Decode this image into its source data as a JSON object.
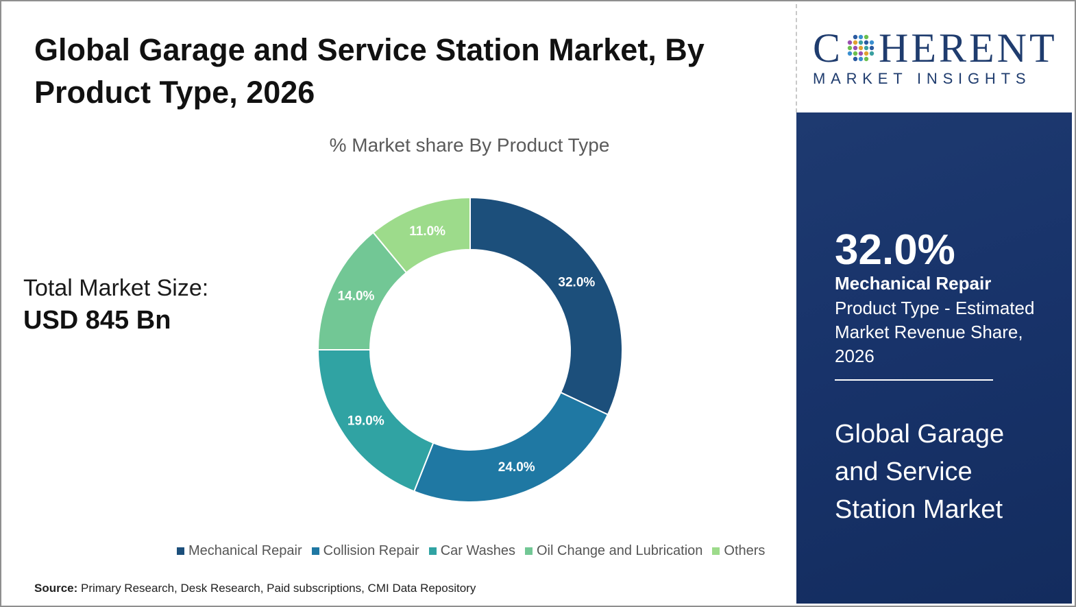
{
  "title": "Global Garage and Service Station Market, By Product Type, 2026",
  "market_size": {
    "label": "Total Market Size:",
    "value": "USD 845 Bn"
  },
  "source": {
    "label": "Source:",
    "text": " Primary Research, Desk Research, Paid subscriptions, CMI Data Repository"
  },
  "logo": {
    "main_left": "C",
    "main_right": "HERENT",
    "sub": "MARKET INSIGHTS"
  },
  "highlight": {
    "value": "32.0%",
    "category": "Mechanical Repair",
    "description": "Product Type - Estimated Market Revenue Share, 2026",
    "market_name": "Global Garage and Service Station Market"
  },
  "colors": {
    "mechanical_repair": "#1c4f7b",
    "collision_repair": "#1f78a3",
    "car_washes": "#30a3a3",
    "oil_change": "#72c795",
    "others": "#9ddb8b",
    "panel": "#1b376c"
  },
  "chart_data": {
    "type": "pie",
    "donut": true,
    "title": "% Market share By Product Type",
    "categories": [
      "Mechanical Repair",
      "Collision Repair",
      "Car Washes",
      "Oil Change and Lubrication",
      "Others"
    ],
    "values": [
      32.0,
      24.0,
      19.0,
      14.0,
      11.0
    ],
    "labels": [
      "32.0%",
      "24.0%",
      "19.0%",
      "14.0%",
      "11.0%"
    ],
    "legend_position": "bottom"
  }
}
